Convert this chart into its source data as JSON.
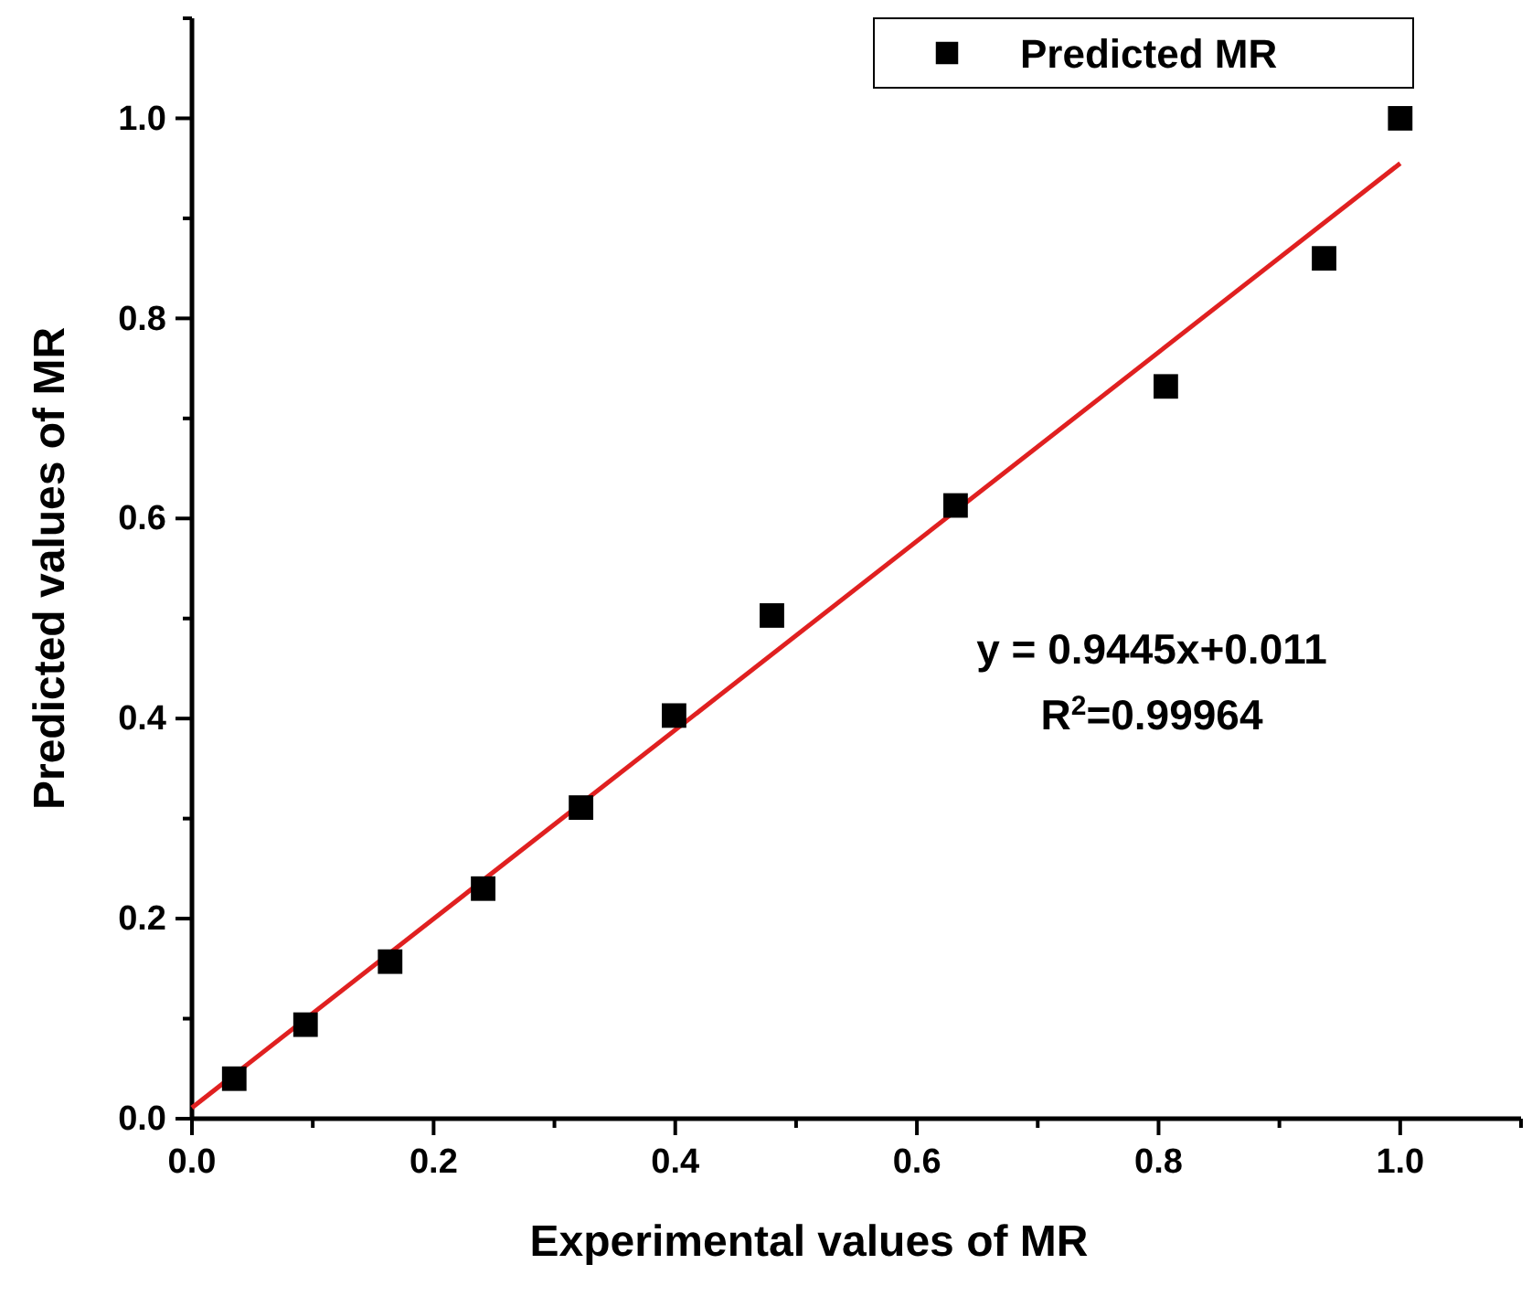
{
  "chart_data": {
    "type": "scatter",
    "xlabel": "Experimental values of MR",
    "ylabel": "Predicted values of MR",
    "xlim": [
      0,
      1.1
    ],
    "ylim": [
      0,
      1.1
    ],
    "xticks": [
      {
        "value": 0,
        "label": "0.0"
      },
      {
        "value": 0.1,
        "label": null
      },
      0.2,
      {
        "value": 0.3,
        "label": null
      },
      0.4,
      {
        "value": 0.5,
        "label": null
      },
      0.6,
      {
        "value": 0.7,
        "label": null
      },
      0.8,
      {
        "value": 0.9,
        "label": null
      },
      {
        "value": 1,
        "label": "1.0"
      },
      {
        "value": 1.1,
        "label": null
      }
    ],
    "yticks": [
      {
        "value": 0,
        "label": "0.0"
      },
      {
        "value": 0.1,
        "label": null
      },
      0.2,
      {
        "value": 0.3,
        "label": null
      },
      0.4,
      {
        "value": 0.5,
        "label": null
      },
      0.6,
      {
        "value": 0.7,
        "label": null
      },
      0.8,
      {
        "value": 0.9,
        "label": null
      },
      {
        "value": 1,
        "label": "1.0"
      },
      {
        "value": 1.1,
        "label": null
      }
    ],
    "grid": false,
    "legend": "top right",
    "marker": "square",
    "series": [
      {
        "name": "Predicted MR",
        "color": "#000000",
        "x": [
          0.035,
          0.094,
          0.164,
          0.241,
          0.322,
          0.399,
          0.48,
          0.632,
          0.806,
          0.937,
          1.0
        ],
        "values": [
          0.04,
          0.094,
          0.157,
          0.23,
          0.311,
          0.403,
          0.503,
          0.613,
          0.732,
          0.86,
          1.0
        ]
      },
      {
        "type": "line",
        "color": "#e02020",
        "line_style": "solid",
        "marker": "none",
        "x": [
          0,
          1.0
        ],
        "values": [
          0.011,
          0.955
        ]
      }
    ],
    "annotations": [
      {
        "text": "y = 0.9445x+0.011"
      },
      {
        "text": "R$^{2}$=0.99964"
      }
    ]
  }
}
